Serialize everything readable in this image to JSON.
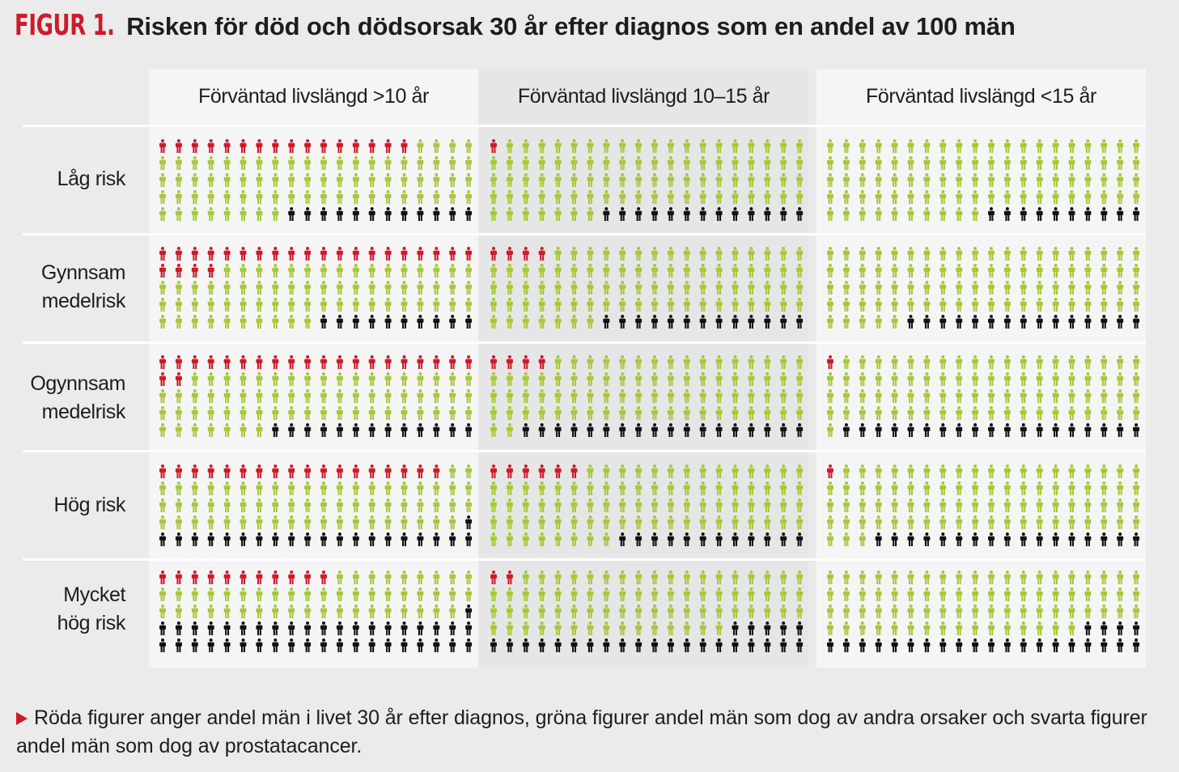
{
  "figure_label": "FIGUR 1.",
  "figure_title": "Risken för död och dödsorsak 30 år efter diagnos som en andel av 100 män",
  "caption": "Röda figurer anger andel män i livet 30 år efter diagnos, gröna figurer andel män som dog av andra orsaker och svarta figurer andel män som dog av prostatacancer.",
  "colors": {
    "alive": "#cc1b2b",
    "other_causes": "#a6c93b",
    "prostate_cancer": "#111111",
    "panel_light": "#f5f5f5",
    "panel_mid": "#e6e6e6",
    "page_bg": "#ebebeb",
    "title_red": "#cc1b2b"
  },
  "icon": "person-icon",
  "chart_data": {
    "type": "pictogram",
    "unit": "100 män",
    "columns": [
      "Förväntad livslängd >10 år",
      "Förväntad livslängd 10–15 år",
      "Förväntad livslängd <15 år"
    ],
    "rows": [
      {
        "label_lines": [
          "Låg risk"
        ]
      },
      {
        "label_lines": [
          "Gynnsam",
          "medelrisk"
        ]
      },
      {
        "label_lines": [
          "Ogynnsam",
          "medelrisk"
        ]
      },
      {
        "label_lines": [
          "Hög risk"
        ]
      },
      {
        "label_lines": [
          "Mycket",
          "hög risk"
        ]
      }
    ],
    "categories": [
      "alive",
      "other_causes",
      "prostate_cancer"
    ],
    "category_colors": [
      "#cc1b2b",
      "#a6c93b",
      "#111111"
    ],
    "values": [
      [
        [
          16,
          72,
          12
        ],
        [
          1,
          86,
          13
        ],
        [
          0,
          90,
          10
        ]
      ],
      [
        [
          24,
          66,
          10
        ],
        [
          4,
          83,
          13
        ],
        [
          0,
          85,
          15
        ]
      ],
      [
        [
          22,
          65,
          13
        ],
        [
          4,
          78,
          18
        ],
        [
          1,
          80,
          19
        ]
      ],
      [
        [
          18,
          61,
          21
        ],
        [
          6,
          82,
          12
        ],
        [
          1,
          82,
          17
        ]
      ],
      [
        [
          11,
          48,
          41
        ],
        [
          2,
          73,
          25
        ],
        [
          0,
          76,
          24
        ]
      ]
    ]
  }
}
